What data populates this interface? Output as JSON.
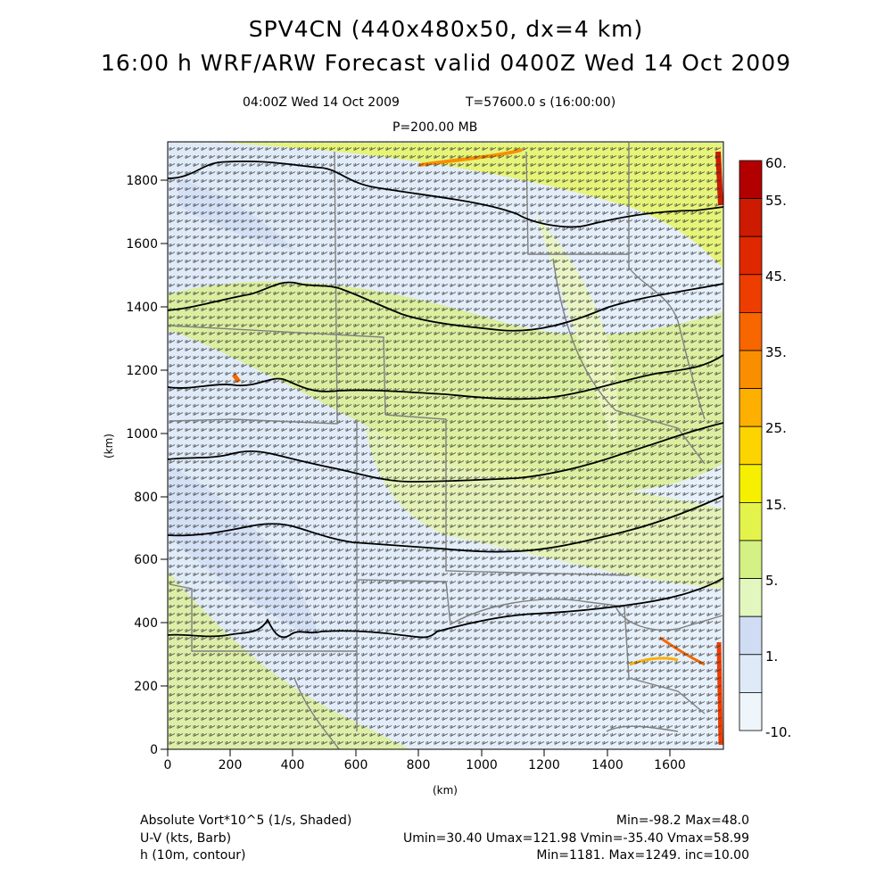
{
  "header": {
    "title_line1": "SPV4CN (440x480x50, dx=4 km)",
    "title_line2": "16:00 h WRF/ARW Forecast valid 0400Z Wed 14 Oct 2009",
    "valid_time": "04:00Z Wed 14 Oct 2009",
    "model_time": "T=57600.0 s (16:00:00)",
    "pressure_level": "P=200.00 MB"
  },
  "axes": {
    "y_label": "(km)",
    "x_label": "(km)",
    "y_ticks": [
      "0",
      "200",
      "400",
      "600",
      "800",
      "1000",
      "1200",
      "1400",
      "1600",
      "1800"
    ],
    "x_ticks": [
      "0",
      "200",
      "400",
      "600",
      "800",
      "1000",
      "1200",
      "1400",
      "1600"
    ]
  },
  "colorbar": {
    "labels": [
      "60.",
      "55.",
      "45.",
      "35.",
      "25.",
      "15.",
      "5.",
      "1.",
      "-10."
    ],
    "colors": [
      "#b20000",
      "#cc1b00",
      "#e02800",
      "#ee3d00",
      "#f86600",
      "#f98f00",
      "#fdb000",
      "#fed400",
      "#f6f000",
      "#e4f34c",
      "#d3f184",
      "#e2f7bd",
      "#cfdcf3",
      "#dfeaf8",
      "#eef6fb"
    ]
  },
  "footer": {
    "field1_name": "Absolute Vort*10^5 (1/s, Shaded)",
    "field1_stats": "Min=-98.2 Max=48.0",
    "field2_name": "U-V (kts, Barb)",
    "field2_stats": "Umin=30.40 Umax=121.98 Vmin=-35.40 Vmax=58.99",
    "field3_name": "h (10m, contour)",
    "field3_stats": "Min=1181. Max=1249. inc=10.00"
  }
}
